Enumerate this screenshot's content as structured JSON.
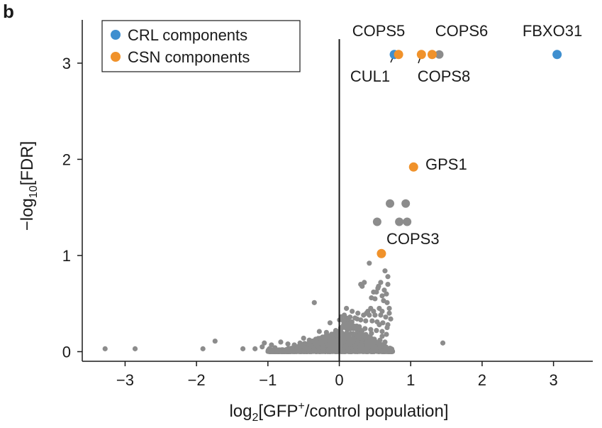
{
  "panel_label": "b",
  "colors": {
    "crl": "#3f8fcf",
    "csn": "#f0922b",
    "background_points": "#8c8c8c",
    "axis": "#1a1a1a"
  },
  "chart_data": {
    "type": "scatter",
    "title": "",
    "xlabel": {
      "prefix": "log",
      "sub": "2",
      "middle": "[GFP",
      "sup": "+",
      "suffix": "/control population]"
    },
    "ylabel": {
      "prefix": "−log",
      "sub": "10",
      "suffix": "[FDR]"
    },
    "xlim": [
      -3.6,
      3.55
    ],
    "ylim": [
      -0.1,
      3.45
    ],
    "x_ticks": [
      {
        "value": -3,
        "label": "−3"
      },
      {
        "value": -2,
        "label": "−2"
      },
      {
        "value": -1,
        "label": "−1"
      },
      {
        "value": 0,
        "label": "0"
      },
      {
        "value": 1,
        "label": "1"
      },
      {
        "value": 2,
        "label": "2"
      },
      {
        "value": 3,
        "label": "3"
      }
    ],
    "y_ticks": [
      {
        "value": 0,
        "label": "0"
      },
      {
        "value": 1,
        "label": "1"
      },
      {
        "value": 2,
        "label": "2"
      },
      {
        "value": 3,
        "label": "3"
      }
    ],
    "reference_line_x": 0,
    "legend": {
      "position": "top-left",
      "entries": [
        {
          "label": "CRL components",
          "category": "crl"
        },
        {
          "label": "CSN components",
          "category": "csn"
        }
      ]
    },
    "highlighted_points": [
      {
        "gene": "FBXO31",
        "x": 3.05,
        "y": 3.09,
        "category": "crl",
        "label_side": "above"
      },
      {
        "gene": "CUL1",
        "x": 0.77,
        "y": 3.09,
        "category": "crl",
        "label_side": "below"
      },
      {
        "gene": "COPS5",
        "x": 0.83,
        "y": 3.09,
        "category": "csn",
        "label_side": "above"
      },
      {
        "gene": "COPS8",
        "x": 1.15,
        "y": 3.09,
        "category": "csn",
        "label_side": "below"
      },
      {
        "gene": "COPS6",
        "x": 1.3,
        "y": 3.09,
        "category": "csn",
        "label_side": "above"
      },
      {
        "gene": "GPS1",
        "x": 1.04,
        "y": 1.92,
        "category": "csn",
        "label_side": "right"
      },
      {
        "gene": "COPS3",
        "x": 0.59,
        "y": 1.02,
        "category": "csn",
        "label_side": "above"
      }
    ],
    "large_background_points": [
      {
        "x": 1.4,
        "y": 3.09
      },
      {
        "x": 0.71,
        "y": 1.54
      },
      {
        "x": 0.93,
        "y": 1.54
      },
      {
        "x": 0.53,
        "y": 1.35
      },
      {
        "x": 0.84,
        "y": 1.35
      },
      {
        "x": 0.95,
        "y": 1.35
      }
    ],
    "background_points": [
      {
        "x": -3.28,
        "y": 0.03
      },
      {
        "x": -2.86,
        "y": 0.03
      },
      {
        "x": -1.91,
        "y": 0.03
      },
      {
        "x": -1.74,
        "y": 0.11
      },
      {
        "x": -1.35,
        "y": 0.03
      },
      {
        "x": 1.45,
        "y": 0.09
      },
      {
        "x": -0.35,
        "y": 0.51
      },
      {
        "x": 0.42,
        "y": 0.92
      },
      {
        "x": 0.64,
        "y": 0.84
      },
      {
        "x": 0.68,
        "y": 0.78
      },
      {
        "x": 0.58,
        "y": 0.72
      },
      {
        "x": 0.32,
        "y": 0.68
      },
      {
        "x": 0.48,
        "y": 0.62
      },
      {
        "x": 0.55,
        "y": 0.68
      },
      {
        "x": 0.3,
        "y": 0.7
      },
      {
        "x": 0.35,
        "y": 0.72
      },
      {
        "x": 0.68,
        "y": 0.7
      },
      {
        "x": 0.54,
        "y": 0.66
      },
      {
        "x": 0.63,
        "y": 0.64
      },
      {
        "x": 0.52,
        "y": 0.62
      },
      {
        "x": 0.66,
        "y": 0.6
      },
      {
        "x": 0.6,
        "y": 0.58
      },
      {
        "x": 0.45,
        "y": 0.56
      },
      {
        "x": 0.5,
        "y": 0.55
      },
      {
        "x": 0.62,
        "y": 0.53
      },
      {
        "x": 0.67,
        "y": 0.51
      },
      {
        "x": 0.44,
        "y": 0.45
      },
      {
        "x": 0.56,
        "y": 0.45
      },
      {
        "x": 0.4,
        "y": 0.42
      },
      {
        "x": 0.48,
        "y": 0.42
      },
      {
        "x": 0.6,
        "y": 0.42
      },
      {
        "x": 0.7,
        "y": 0.4
      },
      {
        "x": 0.38,
        "y": 0.4
      },
      {
        "x": 0.1,
        "y": 0.45
      },
      {
        "x": 0.18,
        "y": 0.42
      },
      {
        "x": 0.26,
        "y": 0.4
      },
      {
        "x": 0.34,
        "y": 0.38
      },
      {
        "x": 0.42,
        "y": 0.38
      },
      {
        "x": 0.5,
        "y": 0.38
      },
      {
        "x": 0.58,
        "y": 0.38
      },
      {
        "x": 0.65,
        "y": 0.36
      },
      {
        "x": 0.72,
        "y": 0.34
      },
      {
        "x": 0.07,
        "y": 0.38
      },
      {
        "x": 0.15,
        "y": 0.36
      },
      {
        "x": 0.22,
        "y": 0.35
      },
      {
        "x": 0.3,
        "y": 0.33
      },
      {
        "x": 0.37,
        "y": 0.32
      },
      {
        "x": 0.46,
        "y": 0.32
      },
      {
        "x": 0.53,
        "y": 0.31
      },
      {
        "x": 0.61,
        "y": 0.3
      },
      {
        "x": 0.68,
        "y": 0.28
      },
      {
        "x": -0.13,
        "y": 0.3
      },
      {
        "x": 0.02,
        "y": 0.25
      },
      {
        "x": 0.11,
        "y": 0.27
      },
      {
        "x": 0.2,
        "y": 0.24
      },
      {
        "x": 0.28,
        "y": 0.26
      },
      {
        "x": 0.36,
        "y": 0.24
      },
      {
        "x": 0.44,
        "y": 0.23
      },
      {
        "x": 0.52,
        "y": 0.22
      },
      {
        "x": 0.6,
        "y": 0.21
      },
      {
        "x": 0.66,
        "y": 0.18
      },
      {
        "x": -0.28,
        "y": 0.21
      },
      {
        "x": -0.18,
        "y": 0.2
      },
      {
        "x": -0.09,
        "y": 0.18
      },
      {
        "x": 0.04,
        "y": 0.16
      },
      {
        "x": 0.14,
        "y": 0.18
      },
      {
        "x": 0.24,
        "y": 0.17
      },
      {
        "x": 0.33,
        "y": 0.15
      },
      {
        "x": 0.41,
        "y": 0.14
      },
      {
        "x": 0.49,
        "y": 0.13
      },
      {
        "x": 0.57,
        "y": 0.12
      },
      {
        "x": 0.64,
        "y": 0.1
      },
      {
        "x": -0.5,
        "y": 0.14
      },
      {
        "x": -0.42,
        "y": 0.12
      },
      {
        "x": -0.33,
        "y": 0.13
      },
      {
        "x": -0.24,
        "y": 0.11
      },
      {
        "x": -0.15,
        "y": 0.12
      },
      {
        "x": -0.06,
        "y": 0.1
      },
      {
        "x": 0.08,
        "y": 0.09
      },
      {
        "x": 0.18,
        "y": 0.1
      },
      {
        "x": 0.28,
        "y": 0.09
      },
      {
        "x": 0.38,
        "y": 0.08
      },
      {
        "x": 0.47,
        "y": 0.08
      },
      {
        "x": 0.55,
        "y": 0.07
      },
      {
        "x": -0.82,
        "y": 0.1
      },
      {
        "x": -0.72,
        "y": 0.08
      },
      {
        "x": -0.63,
        "y": 0.07
      },
      {
        "x": -0.55,
        "y": 0.09
      },
      {
        "x": -0.46,
        "y": 0.07
      },
      {
        "x": -0.37,
        "y": 0.06
      },
      {
        "x": -0.28,
        "y": 0.07
      },
      {
        "x": -0.19,
        "y": 0.05
      },
      {
        "x": -0.1,
        "y": 0.06
      },
      {
        "x": 0.03,
        "y": 0.05
      },
      {
        "x": 0.12,
        "y": 0.06
      },
      {
        "x": 0.22,
        "y": 0.05
      },
      {
        "x": 0.32,
        "y": 0.04
      },
      {
        "x": 0.42,
        "y": 0.05
      },
      {
        "x": 0.51,
        "y": 0.04
      },
      {
        "x": -1.18,
        "y": 0.03
      },
      {
        "x": -1.08,
        "y": 0.05
      },
      {
        "x": -0.98,
        "y": 0.03
      },
      {
        "x": -0.9,
        "y": 0.04
      },
      {
        "x": -0.8,
        "y": 0.02
      },
      {
        "x": -0.71,
        "y": 0.03
      },
      {
        "x": -0.62,
        "y": 0.02
      },
      {
        "x": -0.53,
        "y": 0.03
      },
      {
        "x": -0.44,
        "y": 0.02
      },
      {
        "x": -0.35,
        "y": 0.02
      },
      {
        "x": -0.26,
        "y": 0.01
      },
      {
        "x": -0.17,
        "y": 0.02
      },
      {
        "x": -0.08,
        "y": 0.01
      },
      {
        "x": 0.05,
        "y": 0.01
      },
      {
        "x": 0.14,
        "y": 0.02
      },
      {
        "x": 0.24,
        "y": 0.01
      },
      {
        "x": 0.33,
        "y": 0.02
      },
      {
        "x": 0.43,
        "y": 0.01
      },
      {
        "x": 0.53,
        "y": 0.01
      },
      {
        "x": 0.61,
        "y": 0.02
      },
      {
        "x": -1.05,
        "y": 0.09
      },
      {
        "x": -0.95,
        "y": 0.07
      },
      {
        "x": 0.6,
        "y": 0.16
      },
      {
        "x": 0.67,
        "y": 0.25
      },
      {
        "x": 0.56,
        "y": 0.28
      },
      {
        "x": 0.7,
        "y": 0.45
      },
      {
        "x": 0.25,
        "y": 0.34
      },
      {
        "x": -0.05,
        "y": 0.22
      },
      {
        "x": 0.45,
        "y": 0.19
      },
      {
        "x": 0.62,
        "y": 0.05
      }
    ]
  }
}
